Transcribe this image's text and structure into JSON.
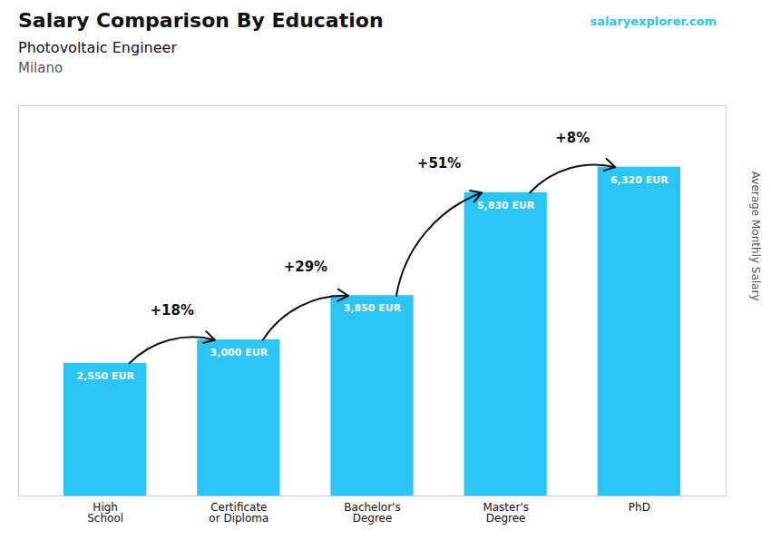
{
  "chart_data": {
    "type": "bar",
    "title": "Salary Comparison By Education",
    "subtitle": "Photovoltaic Engineer",
    "location": "Milano",
    "source": "salaryexplorer.com",
    "ylabel": "Average Monthly Salary",
    "categories": [
      "High\nSchool",
      "Certificate\nor Diploma",
      "Bachelor's\nDegree",
      "Master's\nDegree",
      "PhD"
    ],
    "values": [
      2550,
      3000,
      3850,
      5830,
      6320
    ],
    "value_labels": [
      "2,550 EUR",
      "3,000 EUR",
      "3,850 EUR",
      "5,830 EUR",
      "6,320 EUR"
    ],
    "data_labels": true,
    "annotations": [
      "+18%",
      "+29%",
      "+51%",
      "+8%"
    ],
    "color": "#29c5f6",
    "ylim": [
      0,
      7500
    ],
    "tick_labels": "x",
    "grid": false
  }
}
